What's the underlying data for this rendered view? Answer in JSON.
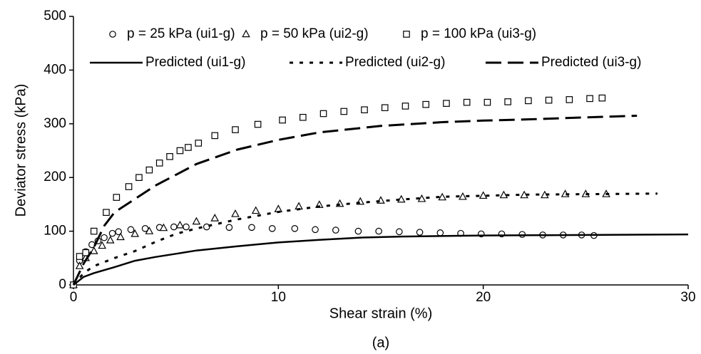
{
  "chart_data": {
    "type": "scatter",
    "xlabel": "Shear strain (%)",
    "ylabel": "Deviator stress (kPa)",
    "caption": "(a)",
    "xlim": [
      0,
      30
    ],
    "xticks": [
      0,
      10,
      20,
      30
    ],
    "ylim": [
      0,
      500
    ],
    "yticks": [
      0,
      100,
      200,
      300,
      400,
      500
    ],
    "grid": false,
    "legend": "top",
    "series": [
      {
        "name": "p = 25 kPa (ui1-g)",
        "type": "scatter",
        "marker": "circle",
        "color": "#000000",
        "x": [
          0,
          0.3,
          0.6,
          0.9,
          1.2,
          1.5,
          1.9,
          2.2,
          2.8,
          3.5,
          4.2,
          4.9,
          5.5,
          6.5,
          7.6,
          8.7,
          9.7,
          10.8,
          11.8,
          12.8,
          13.9,
          14.9,
          15.9,
          16.9,
          17.9,
          18.9,
          19.9,
          20.9,
          21.9,
          22.9,
          23.9,
          24.8,
          25.4
        ],
        "values": [
          0,
          45,
          62,
          75,
          82,
          88,
          96,
          99,
          103,
          105,
          107,
          108,
          108,
          108,
          107,
          107,
          105,
          105,
          103,
          102,
          100,
          100,
          99,
          98,
          97,
          96,
          95,
          95,
          94,
          93,
          93,
          93,
          92
        ]
      },
      {
        "name": "p = 50 kPa (ui2-g)",
        "type": "scatter",
        "marker": "triangle",
        "color": "#000000",
        "x": [
          0,
          0.3,
          0.6,
          1.0,
          1.4,
          1.8,
          2.3,
          3.0,
          3.7,
          4.4,
          5.2,
          6.0,
          6.9,
          7.9,
          8.9,
          10,
          11,
          12,
          13,
          14,
          15,
          16,
          17,
          18,
          19,
          20,
          21,
          22,
          23,
          24,
          25,
          26
        ],
        "values": [
          0,
          35,
          50,
          63,
          73,
          83,
          89,
          95,
          100,
          106,
          111,
          118,
          124,
          132,
          138,
          141,
          146,
          149,
          151,
          155,
          157,
          159,
          160,
          163,
          164,
          166,
          167,
          167,
          167,
          169,
          169,
          169
        ]
      },
      {
        "name": "p = 100 kPa (ui3-g)",
        "type": "scatter",
        "marker": "square",
        "color": "#000000",
        "x": [
          0,
          0.3,
          0.6,
          1.0,
          1.6,
          2.1,
          2.7,
          3.2,
          3.7,
          4.2,
          4.7,
          5.2,
          5.6,
          6.1,
          6.9,
          7.9,
          9.0,
          10.2,
          11.2,
          12.2,
          13.2,
          14.2,
          15.2,
          16.2,
          17.2,
          18.2,
          19.2,
          20.2,
          21.2,
          22.2,
          23.2,
          24.2,
          25.2,
          25.8
        ],
        "values": [
          0,
          53,
          60,
          100,
          135,
          163,
          183,
          200,
          214,
          227,
          239,
          250,
          256,
          264,
          278,
          289,
          299,
          307,
          312,
          319,
          323,
          326,
          330,
          333,
          336,
          338,
          340,
          340,
          341,
          343,
          344,
          345,
          347,
          348
        ]
      },
      {
        "name": "Predicted (ui1-g)",
        "type": "line",
        "linestyle": "solid",
        "color": "#000000",
        "x": [
          0,
          0.5,
          1,
          2,
          3,
          4,
          5,
          6,
          8,
          10,
          12,
          14,
          16,
          20,
          25,
          30
        ],
        "values": [
          0,
          15,
          22,
          33,
          45,
          52,
          58,
          64,
          72,
          79,
          84,
          88,
          90,
          92,
          93,
          94
        ]
      },
      {
        "name": "Predicted (ui2-g)",
        "type": "line",
        "linestyle": "dotted",
        "color": "#000000",
        "x": [
          0,
          0.5,
          1,
          2,
          3,
          4,
          5,
          6,
          8,
          10,
          12,
          14,
          16,
          18,
          20,
          22,
          25,
          28.5
        ],
        "values": [
          0,
          22,
          35,
          50,
          63,
          80,
          95,
          105,
          122,
          136,
          146,
          153,
          159,
          164,
          166,
          168,
          169,
          170
        ]
      },
      {
        "name": "Predicted (ui3-g)",
        "type": "line",
        "linestyle": "dashed",
        "color": "#000000",
        "x": [
          0,
          0.5,
          1,
          1.5,
          2,
          3,
          4,
          5,
          6,
          8,
          10,
          12,
          15,
          18,
          20,
          22,
          25,
          27.5
        ],
        "values": [
          0,
          40,
          70,
          110,
          135,
          160,
          185,
          205,
          225,
          252,
          270,
          284,
          296,
          303,
          306,
          308,
          312,
          315
        ]
      }
    ]
  }
}
